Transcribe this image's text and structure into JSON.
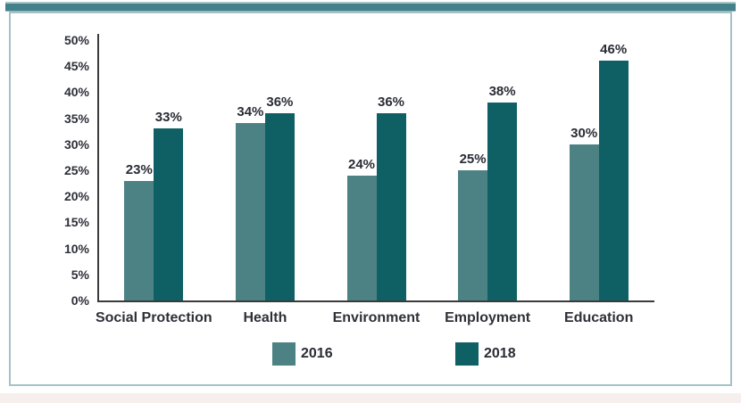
{
  "page": {
    "background": "#ffffff",
    "bottom_strip_color": "#f6efee"
  },
  "header": {
    "top_strip_color": "#43808a",
    "top_strip_edge_color": "#a8c8cc"
  },
  "panel": {
    "background": "#ffffff",
    "border_color": "#a5c3c7"
  },
  "chart_data": {
    "type": "bar",
    "title": "",
    "categories": [
      "Social Protection",
      "Health",
      "Environment",
      "Employment",
      "Education"
    ],
    "series": [
      {
        "name": "2016",
        "color": "#4d8284",
        "values": [
          23,
          34,
          24,
          25,
          30
        ]
      },
      {
        "name": "2018",
        "color": "#0e6065",
        "values": [
          33,
          36,
          36,
          38,
          46
        ]
      }
    ],
    "value_suffix": "%",
    "ylim": [
      0,
      50
    ],
    "ytick_step": 5,
    "ytick_labels": [
      "0%",
      "5%",
      "10%",
      "15%",
      "20%",
      "25%",
      "30%",
      "35%",
      "40%",
      "45%",
      "50%"
    ],
    "grid": false,
    "data_labels": true,
    "legend_position": "bottom",
    "axis_color": "#3a3a3a",
    "text_color": "#2e3038"
  }
}
